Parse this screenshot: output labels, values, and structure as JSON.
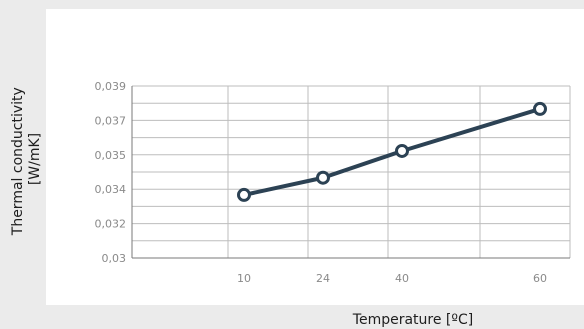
{
  "chart_data": {
    "type": "line",
    "categories": [
      "10",
      "24",
      "40",
      "60"
    ],
    "series": [
      {
        "values": [
          0.0333,
          0.0342,
          0.0356,
          0.0378
        ]
      }
    ],
    "y_ticks": [
      "0,03",
      "0,032",
      "0,034",
      "0,035",
      "0,037",
      "0,039"
    ],
    "ylim": [
      0.03,
      0.039
    ],
    "xlabel": "Temperature [ºC]",
    "ylabel_lines": [
      "Thermal conductivity",
      "[W/mK]"
    ],
    "grid": true,
    "colors": {
      "background": "#ebebeb",
      "plot_panel": "#ffffff",
      "line": "#2c4254",
      "marker_fill": "#ffffff",
      "grid": "#bdbdbd"
    }
  }
}
